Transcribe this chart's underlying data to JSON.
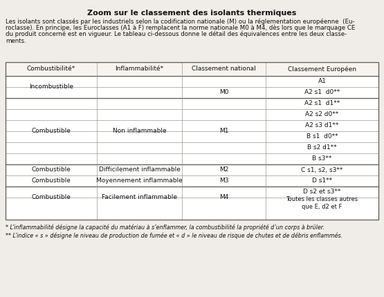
{
  "title": "Zoom sur le classement des isolants thermiques",
  "intro_lines": [
    "Les isolants sont classés par les industriels selon la codification nationale (M) ou la réglementation européenne  (Eu-",
    "roclasse). En principe, les Euroclasses (A1 à F) remplacent la norme nationale M0 à M4, dès lors que le marquage CE",
    "du produit concerné est en vigueur. Le tableau ci-dessous donne le détail des équivalences entre les deux classe-",
    "ments."
  ],
  "footnote1": "* L’inflammabilité désigne la capacité du matériau à s’enflammer, la combustibilité la propriété d’un corps à brüler.",
  "footnote2": "** L’indice « s » désigne le niveau de production de fumée et « d » le niveau de risque de chutes et de débris enflammés.",
  "col_headers": [
    "Combustibilité*",
    "Inflammabilité*",
    "Classement national",
    "Classement Européen"
  ],
  "bg_color": "#f0ede8",
  "table_bg": "#ffffff",
  "line_color": "#999990",
  "thick_line_color": "#666660",
  "text_color": "#111111",
  "font_size_title": 8.0,
  "font_size_intro": 6.2,
  "font_size_table": 6.5,
  "font_size_footnote": 5.8,
  "eu_col4": [
    "A2 s1  d1**",
    "A2 s2 d0**",
    "A2 s3 d1**",
    "B s1  d0**",
    "B s2 d1**",
    "B s3**"
  ]
}
